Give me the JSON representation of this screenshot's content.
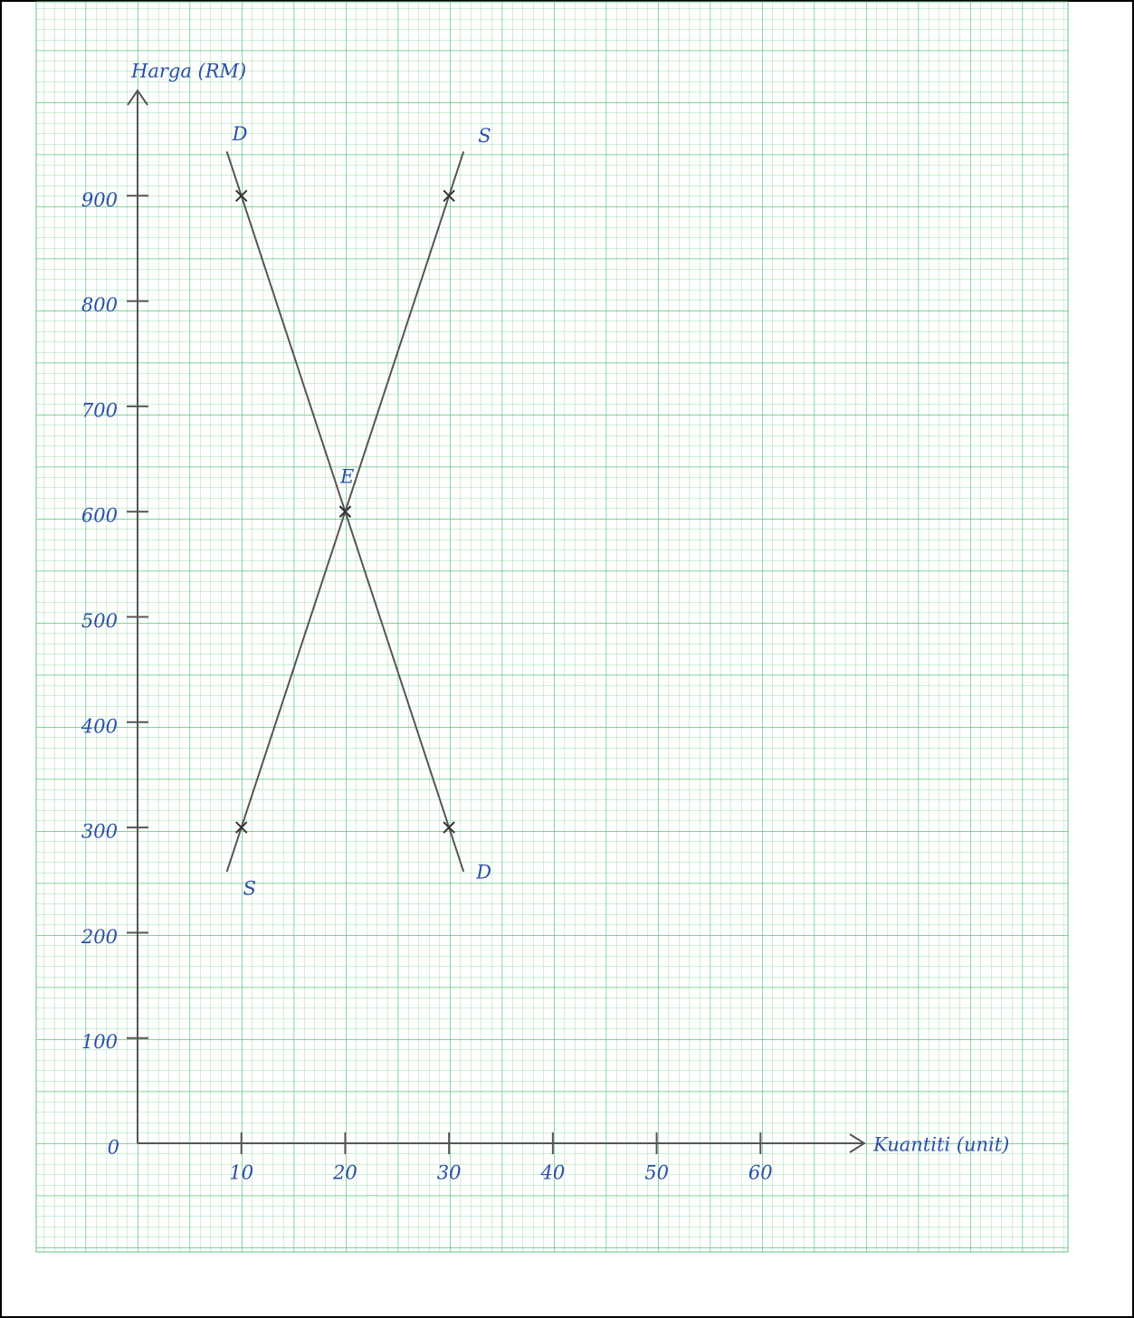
{
  "chart_data": {
    "type": "line",
    "y_label": "Harga (RM)",
    "x_label": "Kuantiti (unit)",
    "xlim": [
      0,
      70
    ],
    "ylim": [
      0,
      1000
    ],
    "xticks": [
      10,
      20,
      30,
      40,
      50,
      60
    ],
    "yticks": [
      0,
      100,
      200,
      300,
      400,
      500,
      600,
      700,
      800,
      900
    ],
    "series": [
      {
        "name": "D",
        "color": "#555555",
        "x": [
          10,
          20,
          30
        ],
        "values": [
          900,
          600,
          300
        ]
      },
      {
        "name": "S",
        "color": "#555555",
        "x": [
          10,
          20,
          30
        ],
        "values": [
          300,
          600,
          900
        ]
      }
    ],
    "annotations": [
      {
        "text": "E"
      }
    ]
  }
}
